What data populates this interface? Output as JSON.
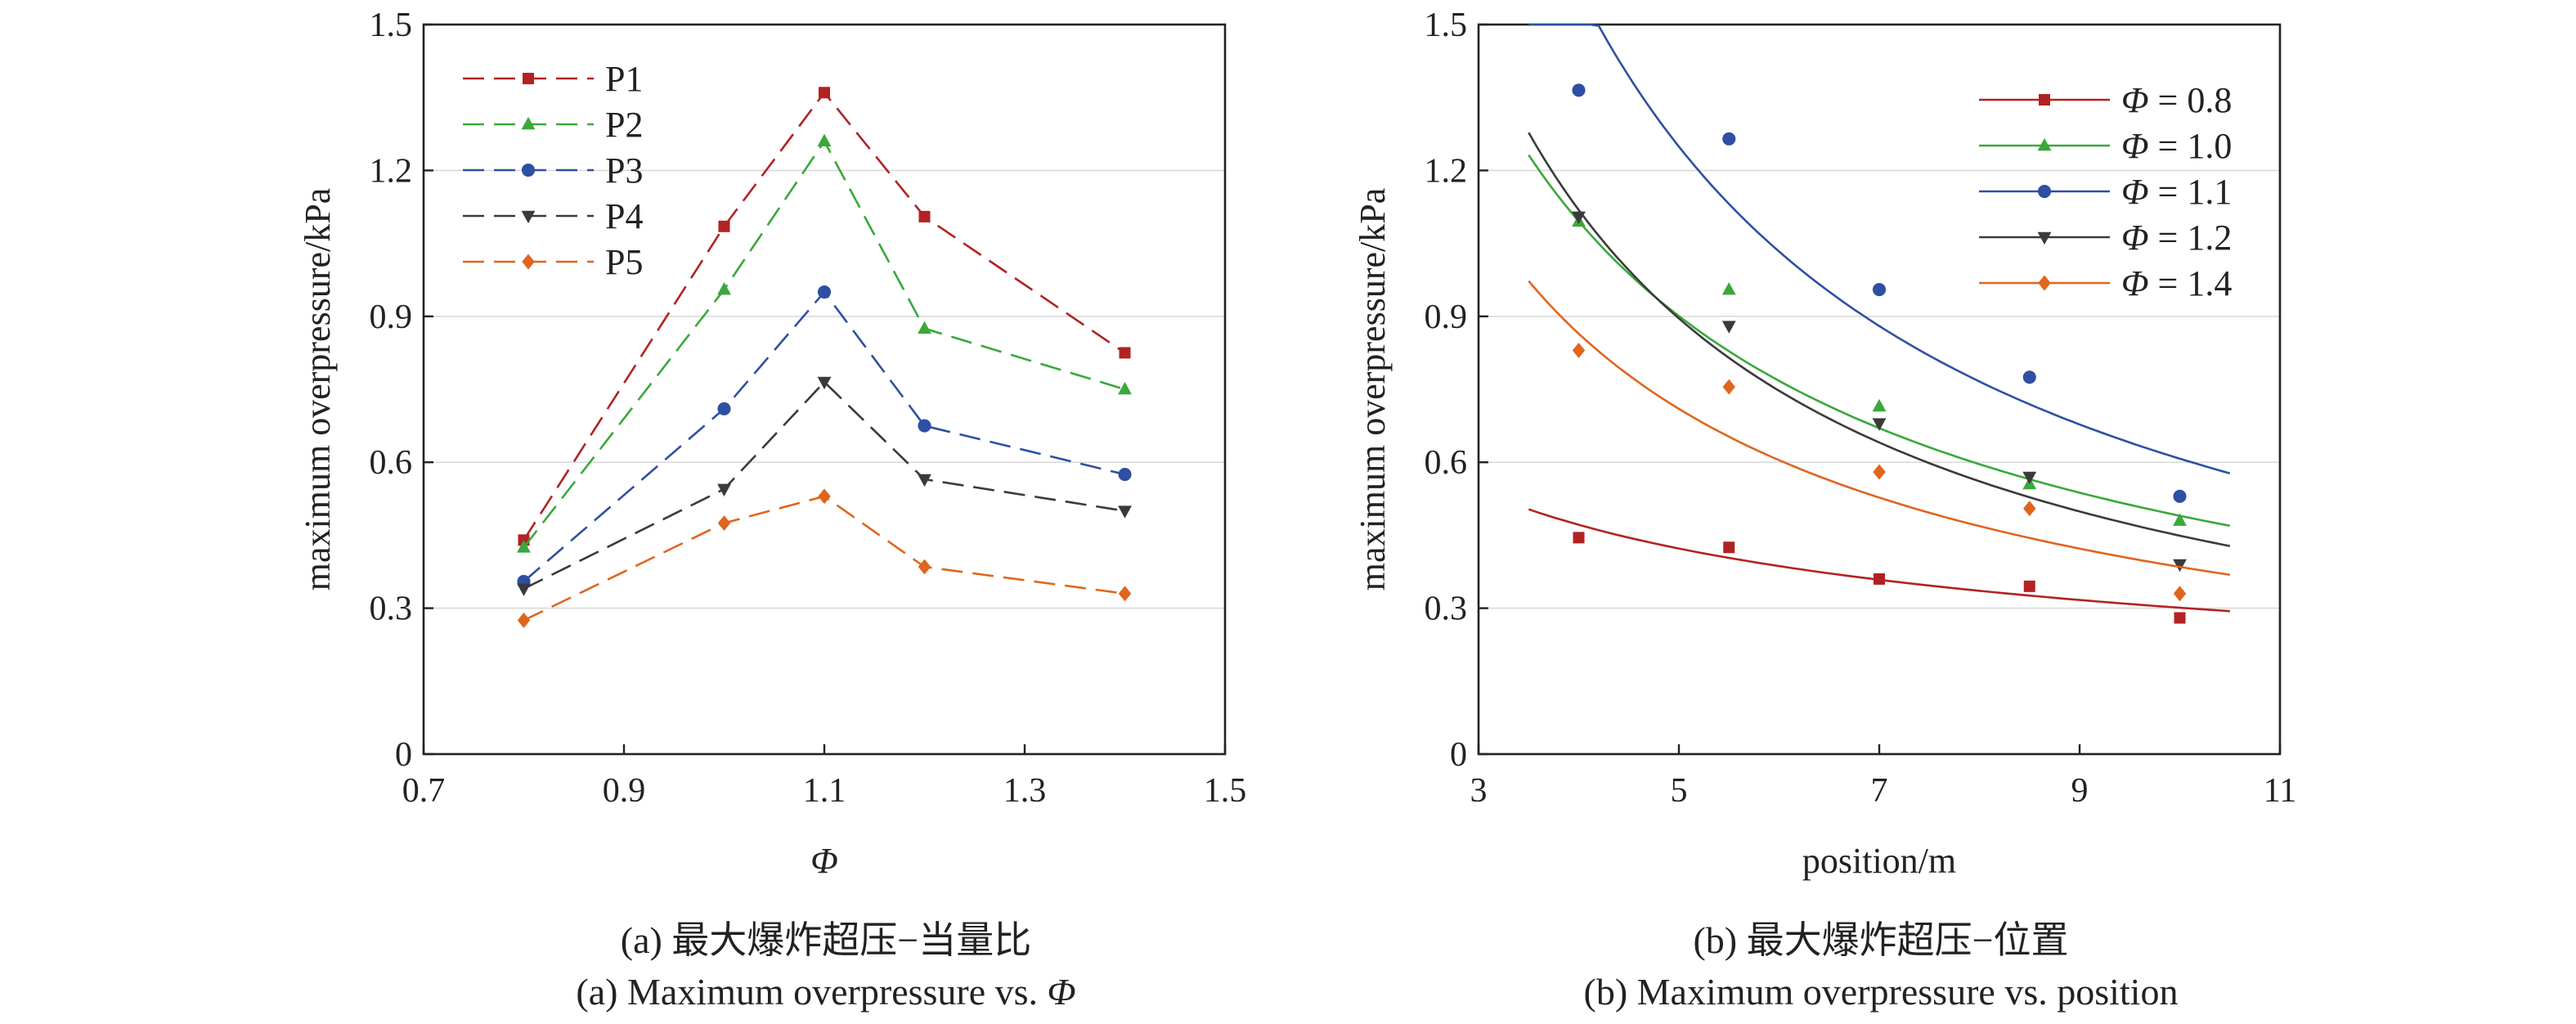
{
  "chart_data": [
    {
      "type": "line",
      "caption_cn": "(a) 最大爆炸超压−当量比",
      "caption_en_prefix": "(a) Maximum overpressure vs. ",
      "caption_en_symbol": "Φ",
      "xlabel": "Φ",
      "ylabel": "maximum overpressure/kPa",
      "xlim": [
        0.7,
        1.5
      ],
      "ylim": [
        0,
        1.5
      ],
      "x_ticks": [
        "0.7",
        "0.9",
        "1.1",
        "1.3",
        "1.5"
      ],
      "y_ticks": [
        "0",
        "0.3",
        "0.6",
        "0.9",
        "1.2",
        "1.5"
      ],
      "grid": true,
      "legend_position": "top-left",
      "x": [
        0.8,
        1.0,
        1.1,
        1.2,
        1.4
      ],
      "series": [
        {
          "name": "P1",
          "color": "#b22222",
          "marker": "square",
          "values": [
            0.44,
            1.085,
            1.36,
            1.105,
            0.825
          ]
        },
        {
          "name": "P2",
          "color": "#3aa83a",
          "marker": "triangle",
          "values": [
            0.425,
            0.955,
            1.26,
            0.875,
            0.75
          ]
        },
        {
          "name": "P3",
          "color": "#2e4fa3",
          "marker": "circle",
          "values": [
            0.355,
            0.71,
            0.95,
            0.675,
            0.575
          ]
        },
        {
          "name": "P4",
          "color": "#3a3a3a",
          "marker": "tri-down",
          "values": [
            0.34,
            0.545,
            0.765,
            0.565,
            0.5
          ]
        },
        {
          "name": "P5",
          "color": "#e0651e",
          "marker": "diamond",
          "values": [
            0.275,
            0.475,
            0.53,
            0.385,
            0.33
          ]
        }
      ]
    },
    {
      "type": "scatter",
      "caption_cn": "(b) 最大爆炸超压−位置",
      "caption_en": "(b) Maximum overpressure vs. position",
      "xlabel": "position/m",
      "ylabel": "maximum overpressure/kPa",
      "xlim": [
        3,
        11
      ],
      "ylim": [
        0,
        1.5
      ],
      "x_ticks": [
        "3",
        "5",
        "7",
        "9",
        "11"
      ],
      "y_ticks": [
        "0",
        "0.3",
        "0.6",
        "0.9",
        "1.2",
        "1.5"
      ],
      "grid": true,
      "legend_position": "top-right",
      "legend_symbol": "Φ",
      "x": [
        4.0,
        5.5,
        7.0,
        8.5,
        10.0
      ],
      "fit_x_range": [
        3.5,
        10.5
      ],
      "series": [
        {
          "name": "= 0.8",
          "color": "#b22222",
          "marker": "square",
          "values": [
            0.445,
            0.425,
            0.36,
            0.345,
            0.28
          ],
          "fit": {
            "a": 0.93,
            "b": -0.49
          }
        },
        {
          "name": "= 1.0",
          "color": "#3aa83a",
          "marker": "triangle",
          "values": [
            1.095,
            0.955,
            0.715,
            0.555,
            0.48
          ],
          "fit": {
            "a": 3.7,
            "b": -0.878
          }
        },
        {
          "name": "= 1.1",
          "color": "#2e4fa3",
          "marker": "circle",
          "values": [
            1.365,
            1.265,
            0.955,
            0.775,
            0.53
          ],
          "fit": {
            "a": 6.66,
            "b": -1.04
          }
        },
        {
          "name": "= 1.2",
          "color": "#3a3a3a",
          "marker": "tri-down",
          "values": [
            1.105,
            0.88,
            0.68,
            0.57,
            0.39
          ],
          "fit": {
            "a": 4.45,
            "b": -0.996
          }
        },
        {
          "name": "= 1.4",
          "color": "#e0651e",
          "marker": "diamond",
          "values": [
            0.83,
            0.755,
            0.58,
            0.505,
            0.33
          ],
          "fit": {
            "a": 2.94,
            "b": -0.883
          }
        }
      ]
    }
  ]
}
